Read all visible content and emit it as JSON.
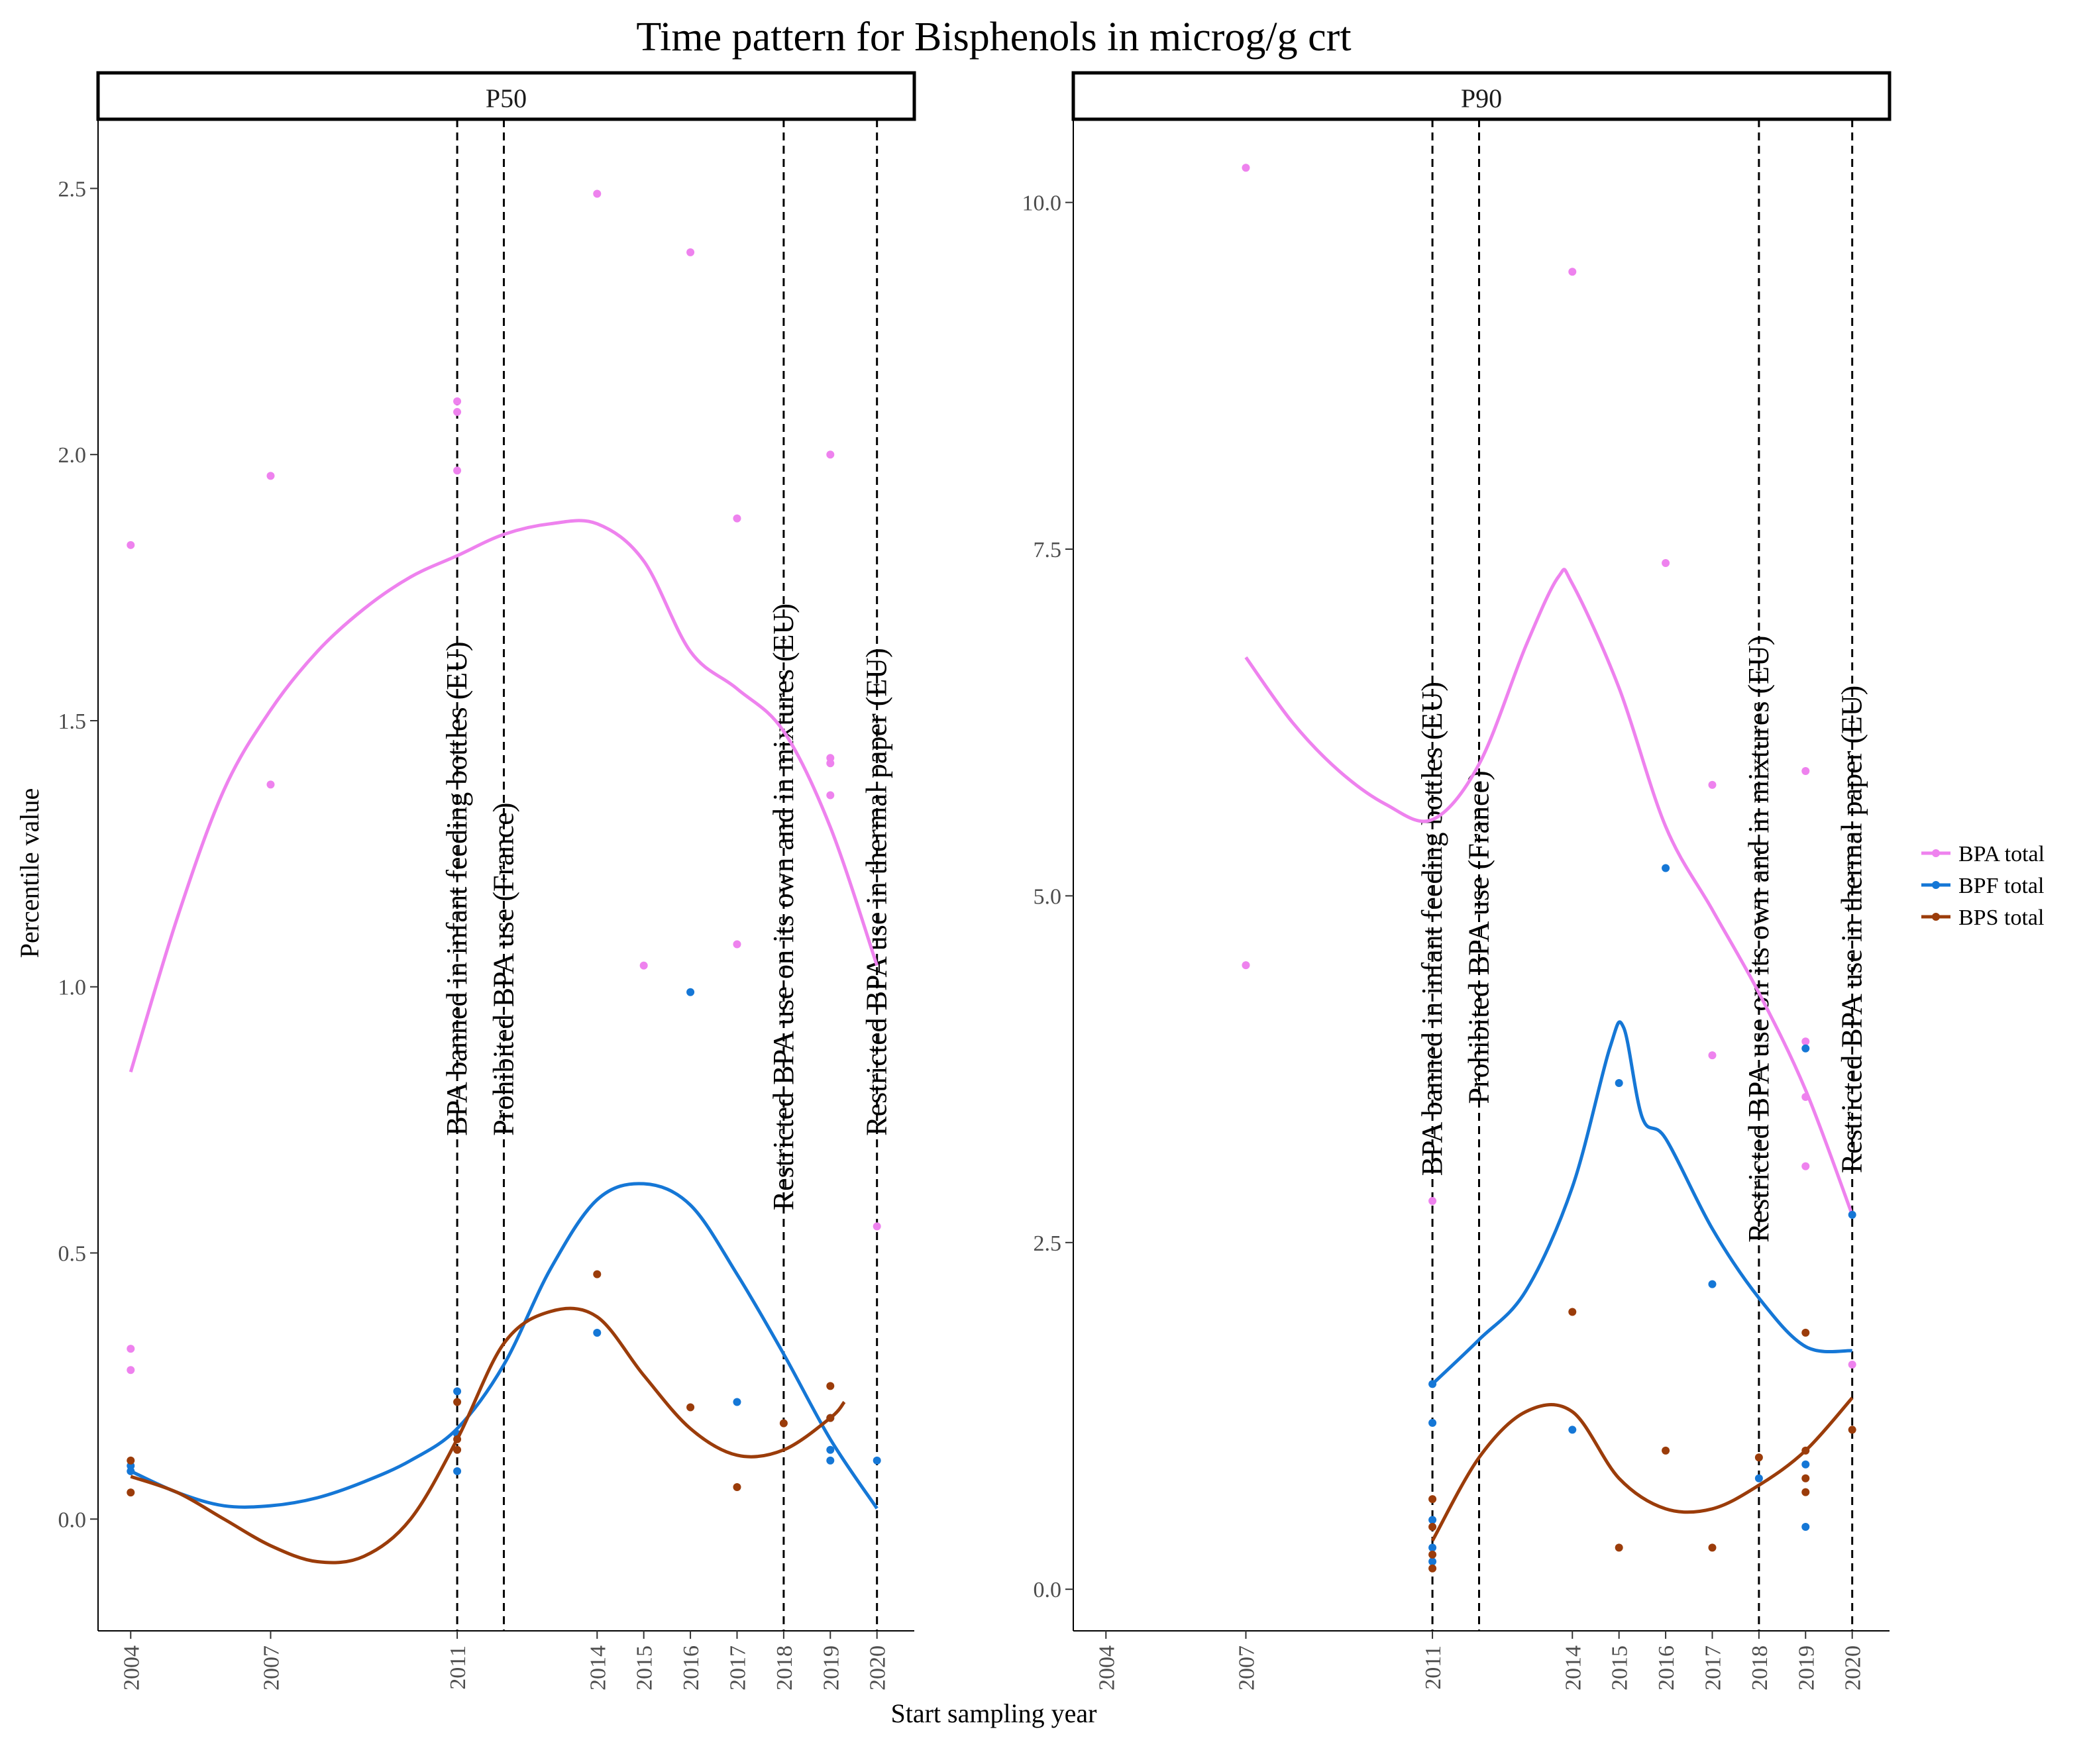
{
  "chart_data": {
    "type": "scatter",
    "title": "Time pattern for Bisphenols in microg/g crt",
    "xlabel": "Start sampling year",
    "ylabel": "Percentile value",
    "x_ticks": [
      2004,
      2007,
      2011,
      2014,
      2015,
      2016,
      2017,
      2018,
      2019,
      2020
    ],
    "x_range": [
      2003.3,
      2020.8
    ],
    "colors": {
      "BPA total": "#ee82ee",
      "BPF total": "#1577d6",
      "BPS total": "#9b3c0a"
    },
    "legend": [
      {
        "name": "BPA total",
        "color": "#ee82ee"
      },
      {
        "name": "BPF total",
        "color": "#1577d6"
      },
      {
        "name": "BPS total",
        "color": "#9b3c0a"
      }
    ],
    "legend_position": "right",
    "events": [
      {
        "year": 2011,
        "label": "BPA banned in infant feeding bottles (EU)"
      },
      {
        "year": 2012,
        "label": "Prohibited BPA use (France)"
      },
      {
        "year": 2018,
        "label": "Restricted BPA use on its own and in mixtures (EU)"
      },
      {
        "year": 2020,
        "label": "Restricted BPA use in thermal paper (EU)"
      }
    ],
    "panels": [
      {
        "strip": "P50",
        "ylim": [
          -0.21,
          2.63
        ],
        "y_ticks": [
          0.0,
          0.5,
          1.0,
          1.5,
          2.0,
          2.5
        ],
        "y_tick_labels": [
          "0.0",
          "0.5",
          "1.0",
          "1.5",
          "2.0",
          "2.5"
        ],
        "event_label_y": [
          0.72,
          0.72,
          0.58,
          0.72
        ],
        "series": [
          {
            "name": "BPA total",
            "points": [
              [
                2004,
                1.83
              ],
              [
                2004,
                0.32
              ],
              [
                2004,
                0.28
              ],
              [
                2007,
                1.96
              ],
              [
                2007,
                1.38
              ],
              [
                2011,
                2.1
              ],
              [
                2011,
                2.08
              ],
              [
                2011,
                1.97
              ],
              [
                2014,
                2.49
              ],
              [
                2015,
                1.04
              ],
              [
                2016,
                2.38
              ],
              [
                2017,
                1.88
              ],
              [
                2017,
                1.08
              ],
              [
                2019,
                2.0
              ],
              [
                2019,
                1.43
              ],
              [
                2019,
                1.42
              ],
              [
                2019,
                1.36
              ],
              [
                2020,
                0.55
              ]
            ],
            "smooth": [
              [
                2004,
                0.84
              ],
              [
                2005,
                1.13
              ],
              [
                2006,
                1.37
              ],
              [
                2007,
                1.52
              ],
              [
                2008,
                1.63
              ],
              [
                2009,
                1.71
              ],
              [
                2010,
                1.77
              ],
              [
                2011,
                1.81
              ],
              [
                2012,
                1.85
              ],
              [
                2013,
                1.87
              ],
              [
                2014,
                1.87
              ],
              [
                2015,
                1.8
              ],
              [
                2016,
                1.63
              ],
              [
                2017,
                1.56
              ],
              [
                2018,
                1.48
              ],
              [
                2019,
                1.3
              ],
              [
                2020,
                1.04
              ]
            ]
          },
          {
            "name": "BPF total",
            "points": [
              [
                2004,
                0.1
              ],
              [
                2004,
                0.09
              ],
              [
                2011,
                0.24
              ],
              [
                2011,
                0.16
              ],
              [
                2011,
                0.09
              ],
              [
                2014,
                0.35
              ],
              [
                2016,
                0.99
              ],
              [
                2017,
                0.22
              ],
              [
                2019,
                0.19
              ],
              [
                2019,
                0.13
              ],
              [
                2019,
                0.11
              ],
              [
                2020,
                0.11
              ]
            ],
            "smooth": [
              [
                2004,
                0.09
              ],
              [
                2005,
                0.05
              ],
              [
                2006,
                0.025
              ],
              [
                2007,
                0.025
              ],
              [
                2008,
                0.04
              ],
              [
                2009,
                0.07
              ],
              [
                2010,
                0.11
              ],
              [
                2011,
                0.17
              ],
              [
                2012,
                0.29
              ],
              [
                2013,
                0.47
              ],
              [
                2014,
                0.6
              ],
              [
                2015,
                0.63
              ],
              [
                2016,
                0.59
              ],
              [
                2017,
                0.46
              ],
              [
                2018,
                0.31
              ],
              [
                2019,
                0.15
              ],
              [
                2020,
                0.02
              ]
            ]
          },
          {
            "name": "BPS total",
            "points": [
              [
                2004,
                0.11
              ],
              [
                2004,
                0.05
              ],
              [
                2011,
                0.22
              ],
              [
                2011,
                0.15
              ],
              [
                2011,
                0.13
              ],
              [
                2014,
                0.46
              ],
              [
                2016,
                0.21
              ],
              [
                2017,
                0.06
              ],
              [
                2018,
                0.18
              ],
              [
                2019,
                0.25
              ],
              [
                2019,
                0.19
              ]
            ],
            "smooth": [
              [
                2004,
                0.08
              ],
              [
                2005,
                0.05
              ],
              [
                2006,
                0.0
              ],
              [
                2007,
                -0.05
              ],
              [
                2008,
                -0.08
              ],
              [
                2009,
                -0.07
              ],
              [
                2010,
                0.0
              ],
              [
                2011,
                0.15
              ],
              [
                2012,
                0.33
              ],
              [
                2013,
                0.39
              ],
              [
                2014,
                0.38
              ],
              [
                2015,
                0.27
              ],
              [
                2016,
                0.17
              ],
              [
                2017,
                0.12
              ],
              [
                2018,
                0.13
              ],
              [
                2019,
                0.19
              ],
              [
                2019.3,
                0.22
              ]
            ]
          }
        ]
      },
      {
        "strip": "P90",
        "ylim": [
          -0.3,
          10.6
        ],
        "y_ticks": [
          0.0,
          2.5,
          5.0,
          7.5,
          10.0
        ],
        "y_tick_labels": [
          "0.0",
          "2.5",
          "5.0",
          "7.5",
          "10.0"
        ],
        "event_label_y": [
          2.98,
          3.5,
          2.5,
          3.0
        ],
        "series": [
          {
            "name": "BPA total",
            "points": [
              [
                2007,
                10.25
              ],
              [
                2007,
                4.5
              ],
              [
                2011,
                2.8
              ],
              [
                2014,
                9.5
              ],
              [
                2016,
                7.4
              ],
              [
                2017,
                5.8
              ],
              [
                2017,
                3.85
              ],
              [
                2019,
                5.9
              ],
              [
                2019,
                3.95
              ],
              [
                2019,
                3.55
              ],
              [
                2019,
                3.05
              ],
              [
                2020,
                1.62
              ]
            ],
            "smooth": [
              [
                2007,
                6.72
              ],
              [
                2008,
                6.25
              ],
              [
                2009,
                5.9
              ],
              [
                2010,
                5.66
              ],
              [
                2011,
                5.55
              ],
              [
                2012,
                5.95
              ],
              [
                2013,
                6.8
              ],
              [
                2013.7,
                7.3
              ],
              [
                2014,
                7.25
              ],
              [
                2015,
                6.5
              ],
              [
                2016,
                5.5
              ],
              [
                2017,
                4.9
              ],
              [
                2018,
                4.3
              ],
              [
                2019,
                3.6
              ],
              [
                2020,
                2.7
              ]
            ]
          },
          {
            "name": "BPF total",
            "points": [
              [
                2011,
                1.48
              ],
              [
                2011,
                1.2
              ],
              [
                2011,
                0.5
              ],
              [
                2011,
                0.3
              ],
              [
                2011,
                0.2
              ],
              [
                2014,
                1.15
              ],
              [
                2015,
                3.65
              ],
              [
                2016,
                5.2
              ],
              [
                2017,
                2.2
              ],
              [
                2018,
                0.8
              ],
              [
                2019,
                3.9
              ],
              [
                2019,
                0.9
              ],
              [
                2019,
                0.45
              ],
              [
                2020,
                2.7
              ]
            ],
            "smooth": [
              [
                2011,
                1.48
              ],
              [
                2012,
                1.8
              ],
              [
                2013,
                2.15
              ],
              [
                2014,
                2.9
              ],
              [
                2014.8,
                3.9
              ],
              [
                2015.1,
                4.05
              ],
              [
                2015.5,
                3.4
              ],
              [
                2016,
                3.25
              ],
              [
                2017,
                2.6
              ],
              [
                2018,
                2.1
              ],
              [
                2019,
                1.75
              ],
              [
                2020,
                1.72
              ]
            ]
          },
          {
            "name": "BPS total",
            "points": [
              [
                2011,
                0.65
              ],
              [
                2011,
                0.45
              ],
              [
                2011,
                0.25
              ],
              [
                2011,
                0.15
              ],
              [
                2014,
                2.0
              ],
              [
                2015,
                0.3
              ],
              [
                2016,
                1.0
              ],
              [
                2017,
                0.3
              ],
              [
                2018,
                0.95
              ],
              [
                2019,
                1.85
              ],
              [
                2019,
                1.0
              ],
              [
                2019,
                0.8
              ],
              [
                2019,
                0.7
              ],
              [
                2020,
                1.15
              ]
            ],
            "smooth": [
              [
                2011,
                0.35
              ],
              [
                2012,
                0.95
              ],
              [
                2013,
                1.28
              ],
              [
                2014,
                1.28
              ],
              [
                2015,
                0.8
              ],
              [
                2016,
                0.58
              ],
              [
                2017,
                0.58
              ],
              [
                2018,
                0.75
              ],
              [
                2019,
                1.0
              ],
              [
                2020,
                1.38
              ]
            ]
          }
        ]
      }
    ]
  }
}
